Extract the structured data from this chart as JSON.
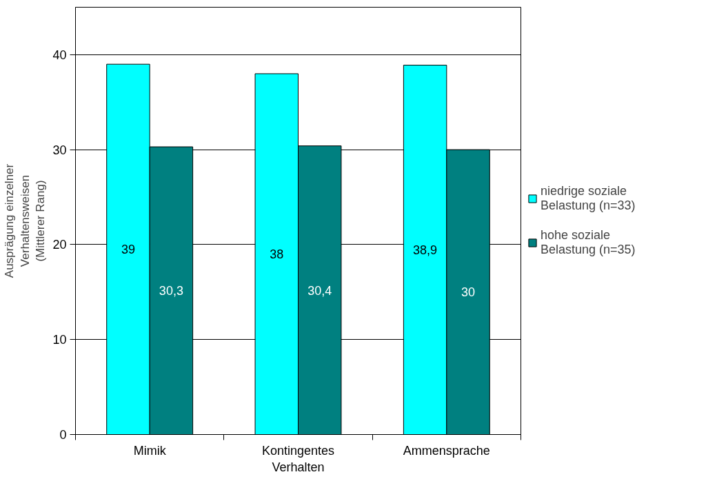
{
  "chart_data": {
    "type": "bar",
    "ylabel": "Ausprägung einzelner\nVerhaltensweisen\n(Mittlerer Rang)",
    "categories": [
      "Mimik",
      "Kontingentes\nVerhalten",
      "Ammensprache"
    ],
    "series": [
      {
        "name": "niedrige soziale\nBelastung (n=33)",
        "color": "#00ffff",
        "values": [
          39,
          38,
          38.9
        ],
        "value_labels": [
          "39",
          "38",
          "38,9"
        ]
      },
      {
        "name": "hohe soziale\nBelastung (n=35)",
        "color": "#008080",
        "values": [
          30.3,
          30.4,
          30
        ],
        "value_labels": [
          "30,3",
          "30,4",
          "30"
        ]
      }
    ],
    "ylim": [
      0,
      45
    ],
    "yticks": [
      0,
      10,
      20,
      30,
      40
    ],
    "grid": "y",
    "legend": "right"
  }
}
